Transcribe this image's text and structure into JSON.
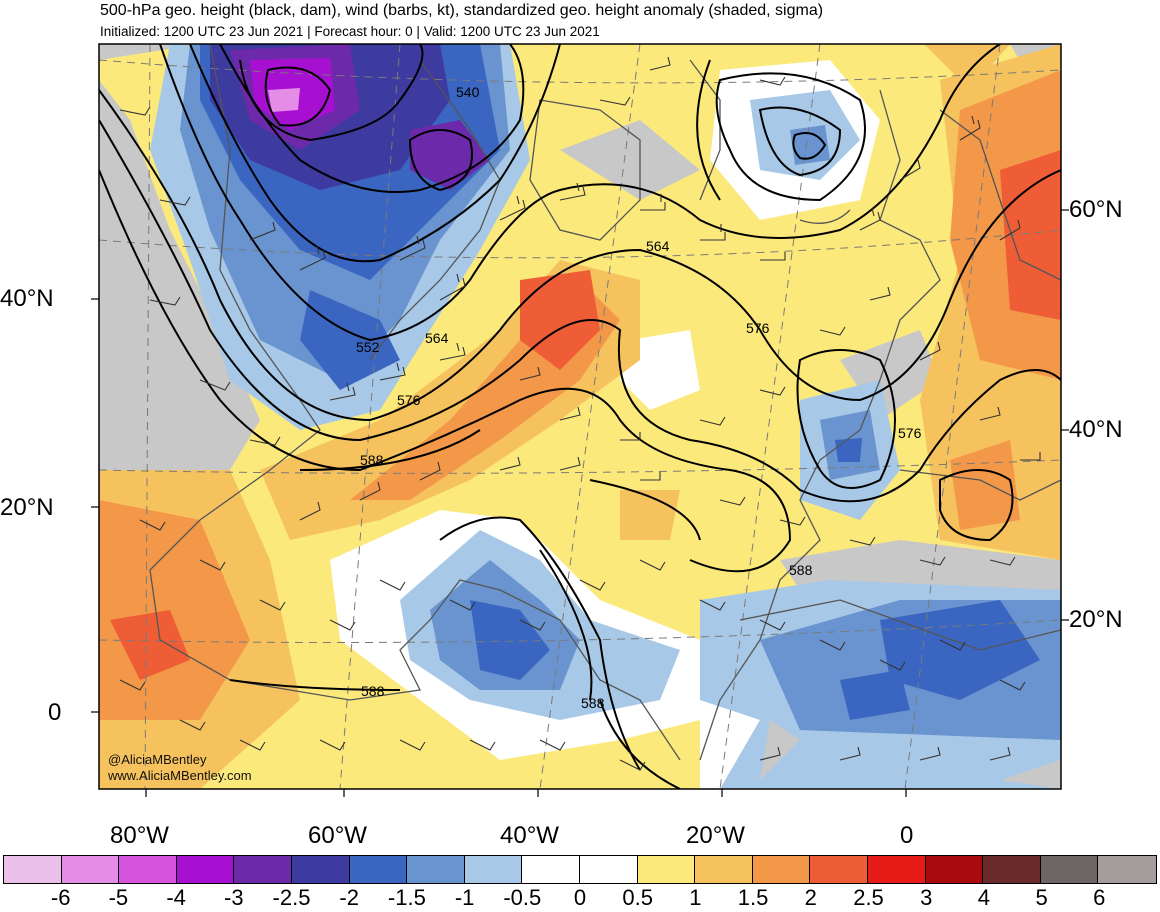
{
  "header": {
    "title": "500-hPa geo. height (black, dam), wind (barbs, kt), standardized geo. height anomaly (shaded, sigma)",
    "subtitle": "Initialized: 1200 UTC 23 Jun 2021 | Forecast hour: 0 | Valid: 1200 UTC 23 Jun 2021"
  },
  "map": {
    "left_lat_labels": [
      "40°N",
      "20°N",
      "0"
    ],
    "right_lat_labels": [
      "60°N",
      "40°N",
      "20°N"
    ],
    "lon_labels": [
      "80°W",
      "60°W",
      "40°W",
      "20°W",
      "0"
    ],
    "contour_labels": [
      "540",
      "552",
      "564",
      "576",
      "588",
      "564",
      "576",
      "576",
      "588",
      "588",
      "588"
    ],
    "credit_handle": "@AliciaMBentley",
    "credit_url": "www.AliciaMBentley.com",
    "colors": {
      "background_gray": "#c8c8c8",
      "coast": "#555555",
      "contour": "#000000"
    }
  },
  "colorbar": {
    "colors": [
      "#ebc0ea",
      "#e58ce6",
      "#d653dd",
      "#a710d1",
      "#6c2aaa",
      "#3d3aa0",
      "#3a66c1",
      "#6a94cf",
      "#a7c8e6",
      "#ffffff",
      "#ffffff",
      "#fce97c",
      "#f6c25e",
      "#f39849",
      "#ee5d36",
      "#e61c19",
      "#a90a0e",
      "#6b2a2a",
      "#6e6565",
      "#a59c9c"
    ],
    "labels": [
      "-6",
      "-5",
      "-4",
      "-3",
      "-2.5",
      "-2",
      "-1.5",
      "-1",
      "-0.5",
      "0",
      "0.5",
      "1",
      "1.5",
      "2",
      "2.5",
      "3",
      "4",
      "5",
      "6"
    ]
  }
}
